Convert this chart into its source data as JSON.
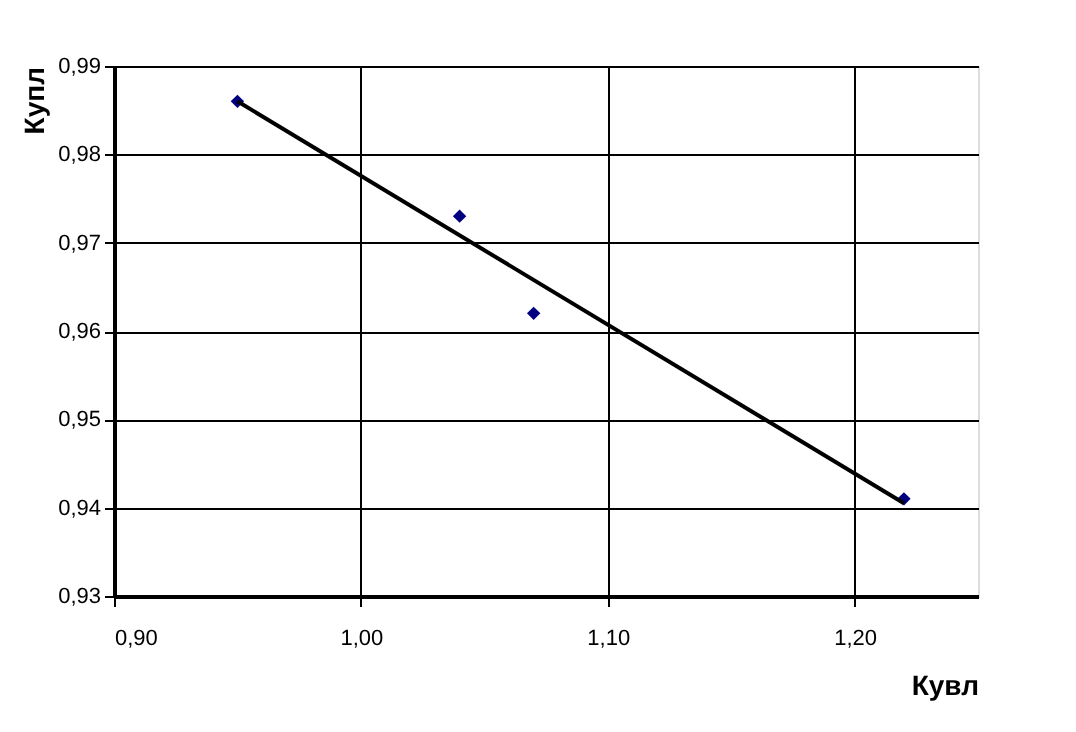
{
  "chart_data": {
    "type": "scatter",
    "xlabel": "Кувл",
    "ylabel": "Купл",
    "series": [
      {
        "color": "#000080",
        "marker": "diamond",
        "x": [
          0.95,
          1.04,
          1.07,
          1.22
        ],
        "values": [
          0.986,
          0.973,
          0.962,
          0.941
        ]
      },
      {
        "type": "line",
        "color": "#000000",
        "marker": "none",
        "line_style": "solid",
        "x": [
          0.95,
          1.22
        ],
        "values": [
          0.986,
          0.9405
        ]
      }
    ],
    "xlim": [
      0.9,
      1.25
    ],
    "xticks": [
      {
        "value": 0.9,
        "label": "0,90"
      },
      {
        "value": 1.0,
        "label": "1,00"
      },
      {
        "value": 1.1,
        "label": "1,10"
      },
      {
        "value": 1.2,
        "label": "1,20"
      }
    ],
    "ylim": [
      0.93,
      0.99
    ],
    "yticks": [
      {
        "value": 0.93,
        "label": "0,93"
      },
      {
        "value": 0.94,
        "label": "0,94"
      },
      {
        "value": 0.95,
        "label": "0,95"
      },
      {
        "value": 0.96,
        "label": "0,96"
      },
      {
        "value": 0.97,
        "label": "0,97"
      },
      {
        "value": 0.98,
        "label": "0,98"
      },
      {
        "value": 0.99,
        "label": "0,99"
      }
    ],
    "grid": true
  }
}
